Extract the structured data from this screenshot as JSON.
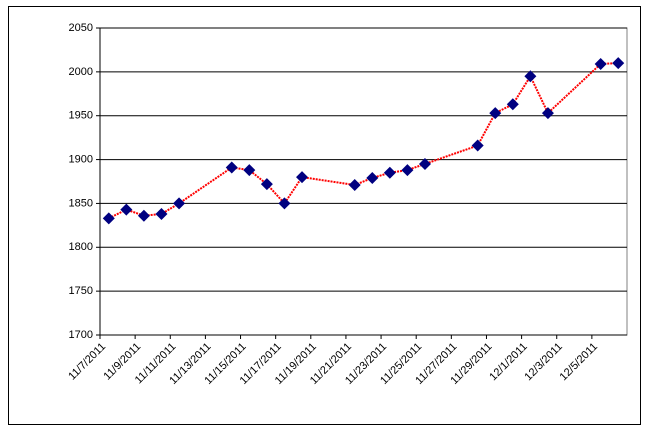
{
  "chart_data": {
    "type": "line",
    "x": [
      "11/7/2011",
      "11/8/2011",
      "11/9/2011",
      "11/10/2011",
      "11/11/2011",
      "11/14/2011",
      "11/15/2011",
      "11/16/2011",
      "11/17/2011",
      "11/18/2011",
      "11/21/2011",
      "11/22/2011",
      "11/23/2011",
      "11/24/2011",
      "11/25/2011",
      "11/28/2011",
      "11/29/2011",
      "11/30/2011",
      "12/1/2011",
      "12/2/2011",
      "12/5/2011",
      "12/6/2011"
    ],
    "values": [
      1833,
      1843,
      1836,
      1838,
      1850,
      1891,
      1888,
      1872,
      1850,
      1880,
      1871,
      1879,
      1885,
      1888,
      1895,
      1916,
      1953,
      1963,
      1995,
      1953,
      2009,
      2010
    ],
    "color": "#ff0000",
    "marker_color": "#000080",
    "xlim": [
      "11/7/2011",
      "12/7/2011"
    ],
    "xticks": [
      "11/7/2011",
      "11/9/2011",
      "11/11/2011",
      "11/13/2011",
      "11/15/2011",
      "11/17/2011",
      "11/19/2011",
      "11/21/2011",
      "11/23/2011",
      "11/25/2011",
      "11/27/2011",
      "11/29/2011",
      "12/1/2011",
      "12/3/2011",
      "12/5/2011"
    ],
    "ylim": [
      1700,
      2050
    ],
    "yticks": [
      1700,
      1750,
      1800,
      1850,
      1900,
      1950,
      2000,
      2050
    ],
    "grid": true
  }
}
